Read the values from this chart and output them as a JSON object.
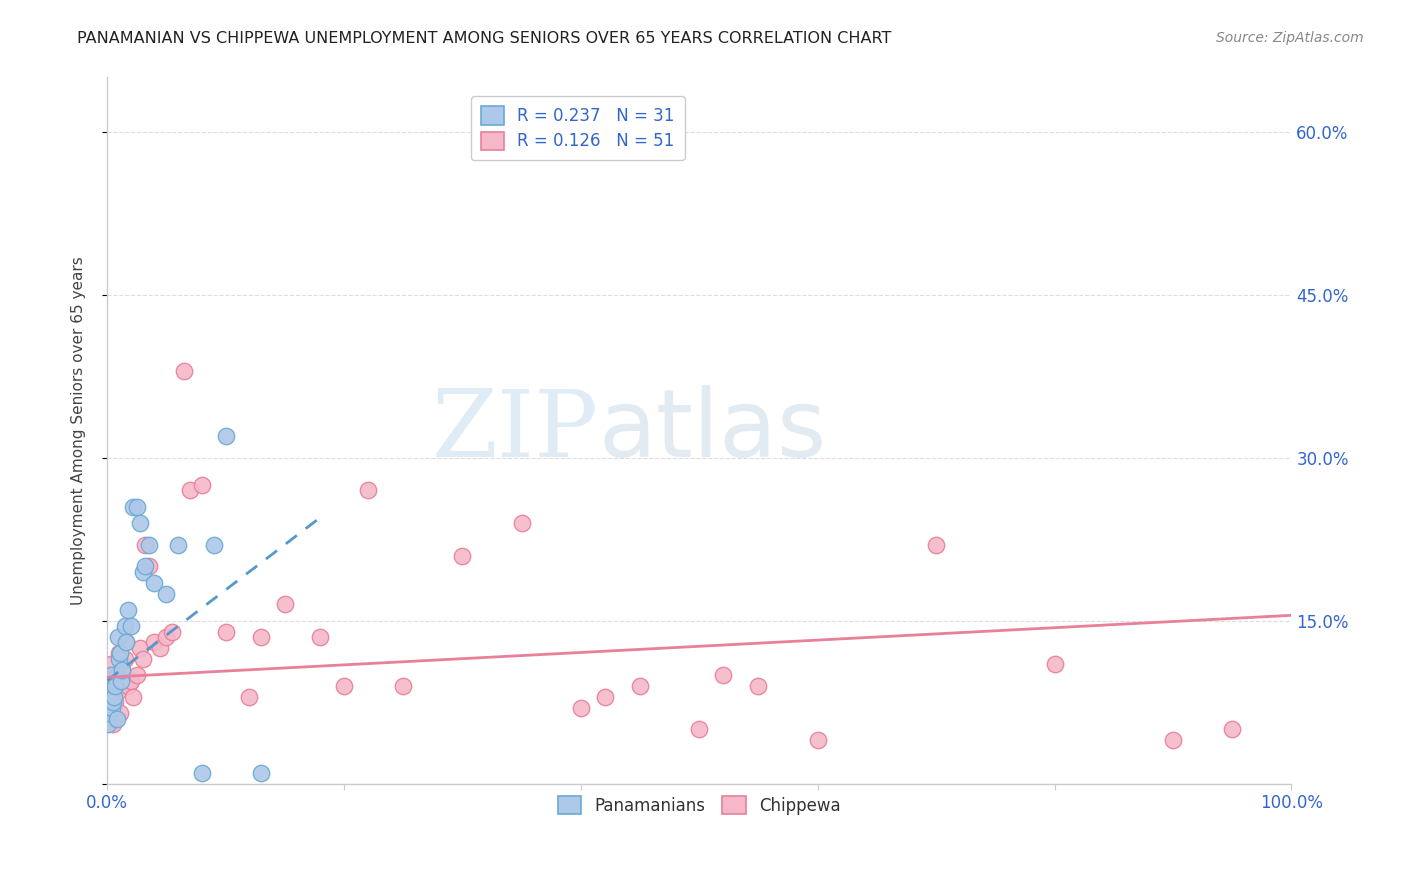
{
  "title": "PANAMANIAN VS CHIPPEWA UNEMPLOYMENT AMONG SENIORS OVER 65 YEARS CORRELATION CHART",
  "source": "Source: ZipAtlas.com",
  "ylabel": "Unemployment Among Seniors over 65 years",
  "xlim": [
    0,
    1.0
  ],
  "ylim": [
    0,
    0.65
  ],
  "background_color": "#ffffff",
  "watermark_zip": "ZIP",
  "watermark_atlas": "atlas",
  "panamanian_scatter_color": "#adc8e8",
  "panamanian_edge_color": "#6aaad4",
  "chippewa_scatter_color": "#f5b8c8",
  "chippewa_edge_color": "#e8809a",
  "panamanian_line_color": "#5599cc",
  "chippewa_line_color": "#e8809a",
  "R_panamanian": 0.237,
  "N_panamanian": 31,
  "R_chippewa": 0.126,
  "N_chippewa": 51,
  "legend_text_color": "#333333",
  "legend_value_color": "#3366cc",
  "axis_label_color": "#3366cc",
  "panamanian_x": [
    0.001,
    0.002,
    0.003,
    0.003,
    0.004,
    0.005,
    0.006,
    0.007,
    0.008,
    0.009,
    0.01,
    0.011,
    0.012,
    0.013,
    0.015,
    0.016,
    0.018,
    0.02,
    0.022,
    0.025,
    0.028,
    0.03,
    0.032,
    0.035,
    0.04,
    0.05,
    0.06,
    0.08,
    0.09,
    0.1,
    0.13
  ],
  "panamanian_y": [
    0.055,
    0.065,
    0.1,
    0.085,
    0.07,
    0.075,
    0.08,
    0.09,
    0.06,
    0.135,
    0.115,
    0.12,
    0.095,
    0.105,
    0.145,
    0.13,
    0.16,
    0.145,
    0.255,
    0.255,
    0.24,
    0.195,
    0.2,
    0.22,
    0.185,
    0.175,
    0.22,
    0.01,
    0.22,
    0.32,
    0.01
  ],
  "chippewa_x": [
    0.001,
    0.002,
    0.003,
    0.004,
    0.005,
    0.006,
    0.007,
    0.008,
    0.009,
    0.01,
    0.011,
    0.012,
    0.013,
    0.015,
    0.016,
    0.018,
    0.02,
    0.022,
    0.025,
    0.028,
    0.03,
    0.032,
    0.035,
    0.04,
    0.045,
    0.05,
    0.055,
    0.065,
    0.07,
    0.08,
    0.1,
    0.12,
    0.13,
    0.15,
    0.18,
    0.2,
    0.22,
    0.25,
    0.3,
    0.35,
    0.4,
    0.42,
    0.45,
    0.5,
    0.52,
    0.55,
    0.6,
    0.7,
    0.8,
    0.9,
    0.95
  ],
  "chippewa_y": [
    0.09,
    0.07,
    0.11,
    0.08,
    0.055,
    0.06,
    0.075,
    0.1,
    0.085,
    0.12,
    0.065,
    0.095,
    0.105,
    0.115,
    0.13,
    0.09,
    0.095,
    0.08,
    0.1,
    0.125,
    0.115,
    0.22,
    0.2,
    0.13,
    0.125,
    0.135,
    0.14,
    0.38,
    0.27,
    0.275,
    0.14,
    0.08,
    0.135,
    0.165,
    0.135,
    0.09,
    0.27,
    0.09,
    0.21,
    0.24,
    0.07,
    0.08,
    0.09,
    0.05,
    0.1,
    0.09,
    0.04,
    0.22,
    0.11,
    0.04,
    0.05
  ],
  "pan_trend_x0": 0.0,
  "pan_trend_x1": 0.18,
  "pan_trend_y0": 0.095,
  "pan_trend_y1": 0.245,
  "chi_trend_x0": 0.0,
  "chi_trend_x1": 1.0,
  "chi_trend_y0": 0.098,
  "chi_trend_y1": 0.155
}
